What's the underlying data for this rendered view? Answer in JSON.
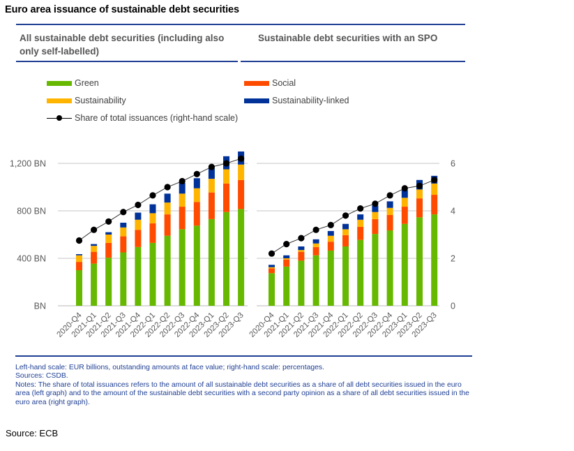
{
  "title": "Euro area issuance of sustainable debt securities",
  "panels": {
    "left_title": "All sustainable debt securities (including also only self-labelled)",
    "right_title": "Sustainable debt securities with an SPO"
  },
  "legend": [
    {
      "label": "Green",
      "color": "#66b800",
      "kind": "bar"
    },
    {
      "label": "Social",
      "color": "#ff4b00",
      "kind": "bar"
    },
    {
      "label": "Sustainability",
      "color": "#ffb400",
      "kind": "bar"
    },
    {
      "label": "Sustainability-linked",
      "color": "#003299",
      "kind": "bar"
    },
    {
      "label": "Share of total issuances (right-hand scale)",
      "color": "#000000",
      "kind": "line"
    }
  ],
  "chart_data": [
    {
      "type": "bar",
      "stacked": true,
      "title": "All sustainable debt securities (including also only self-labelled)",
      "categories": [
        "2020-Q4",
        "2021-Q1",
        "2021-Q2",
        "2021-Q3",
        "2021-Q4",
        "2022-Q1",
        "2022-Q2",
        "2022-Q3",
        "2022-Q4",
        "2023-Q1",
        "2023-Q2",
        "2023-Q3"
      ],
      "series": [
        {
          "name": "Green",
          "color": "#66b800",
          "values": [
            300,
            355,
            405,
            450,
            495,
            530,
            590,
            645,
            675,
            730,
            790,
            815
          ]
        },
        {
          "name": "Social",
          "color": "#ff4b00",
          "values": [
            70,
            100,
            125,
            135,
            145,
            165,
            180,
            190,
            200,
            225,
            240,
            245
          ]
        },
        {
          "name": "Sustainability",
          "color": "#ffb400",
          "values": [
            55,
            50,
            70,
            75,
            85,
            85,
            100,
            110,
            115,
            115,
            120,
            130
          ]
        },
        {
          "name": "Sustainability-linked",
          "color": "#003299",
          "values": [
            10,
            15,
            20,
            40,
            60,
            75,
            75,
            90,
            85,
            90,
            110,
            110
          ]
        }
      ],
      "line_series": {
        "name": "Share of total issuances (right-hand scale)",
        "color": "#000000",
        "values": [
          2.75,
          3.2,
          3.55,
          3.95,
          4.25,
          4.65,
          5.0,
          5.25,
          5.55,
          5.85,
          6.0,
          6.2
        ]
      },
      "left_axis": {
        "ylim": [
          0,
          1200
        ],
        "ticks": [
          0,
          400,
          800,
          1200
        ],
        "tick_labels": [
          "BN",
          "400 BN",
          "800 BN",
          "1,200 BN"
        ]
      },
      "right_axis": {
        "ylim": [
          0,
          6
        ],
        "ticks": [
          0,
          2,
          4,
          6
        ],
        "visible": false
      },
      "grid": true
    },
    {
      "type": "bar",
      "stacked": true,
      "title": "Sustainable debt securities with an SPO",
      "categories": [
        "2020-Q4",
        "2021-Q1",
        "2021-Q2",
        "2021-Q3",
        "2021-Q4",
        "2022-Q1",
        "2022-Q2",
        "2022-Q3",
        "2022-Q4",
        "2023-Q1",
        "2023-Q2",
        "2023-Q3"
      ],
      "series": [
        {
          "name": "Green",
          "color": "#66b800",
          "values": [
            275,
            330,
            380,
            425,
            465,
            500,
            555,
            605,
            635,
            690,
            745,
            770
          ]
        },
        {
          "name": "Social",
          "color": "#ff4b00",
          "values": [
            40,
            60,
            75,
            70,
            75,
            95,
            110,
            125,
            130,
            145,
            160,
            165
          ]
        },
        {
          "name": "Sustainability",
          "color": "#ffb400",
          "values": [
            10,
            10,
            15,
            30,
            50,
            50,
            60,
            60,
            60,
            75,
            75,
            95
          ]
        },
        {
          "name": "Sustainability-linked",
          "color": "#003299",
          "values": [
            20,
            25,
            30,
            35,
            40,
            45,
            45,
            55,
            55,
            65,
            80,
            65
          ]
        }
      ],
      "line_series": {
        "name": "Share of total issuances (right-hand scale)",
        "color": "#000000",
        "values": [
          2.2,
          2.6,
          2.85,
          3.2,
          3.4,
          3.8,
          4.1,
          4.3,
          4.65,
          4.95,
          5.05,
          5.3
        ]
      },
      "left_axis": {
        "ylim": [
          0,
          1200
        ],
        "visible": false
      },
      "right_axis": {
        "ylim": [
          0,
          6
        ],
        "ticks": [
          0,
          2,
          4,
          6
        ],
        "tick_labels": [
          "0",
          "2",
          "4",
          "6"
        ]
      },
      "grid": true
    }
  ],
  "notes": {
    "line1": "Left-hand scale: EUR billions, outstanding amounts at face value; right-hand scale: percentages.",
    "line2": "Sources: CSDB.",
    "line3": "Notes: The share of total issuances refers to the amount of all sustainable debt securities as a share of all debt securities issued in the euro area (left graph) and to the amount of the sustainable debt securities with a second party opinion as a share of all debt securities issued in the euro area (right graph)."
  },
  "source": "Source: ECB"
}
